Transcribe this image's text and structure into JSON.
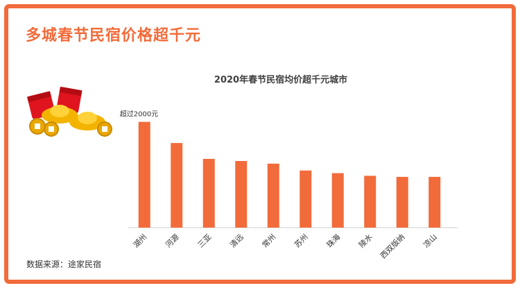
{
  "header": {
    "title": "多城春节民宿价格超千元"
  },
  "source": "数据来源：途家民宿",
  "colors": {
    "frame": "#f26b3a",
    "bar": "#f26b3a",
    "title": "#f26b3a"
  },
  "decoration": {
    "icon": "red-envelope-gold-ingot-icon"
  },
  "chart_data": {
    "type": "bar",
    "title": "2020年春节民宿均价超千元城市",
    "annotation": "超过2000元",
    "categories": [
      "湖州",
      "河源",
      "三亚",
      "清远",
      "常州",
      "苏州",
      "珠海",
      "陵水",
      "西双版纳",
      "凉山"
    ],
    "values": [
      2000,
      1600,
      1300,
      1260,
      1210,
      1080,
      1030,
      980,
      960,
      960
    ],
    "ylim": [
      0,
      2100
    ],
    "xlabel": "",
    "ylabel": "",
    "grid": false,
    "legend": "none"
  }
}
